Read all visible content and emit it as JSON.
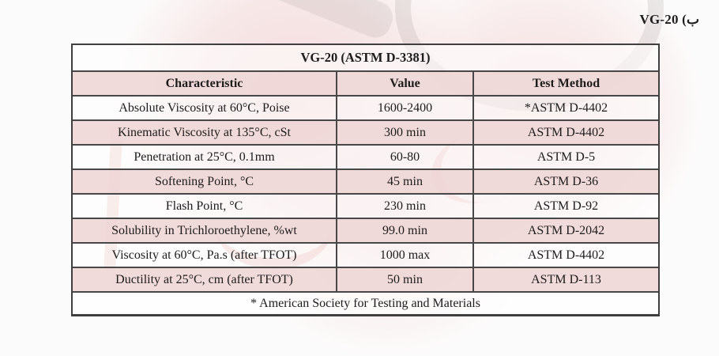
{
  "page": {
    "heading": "VG-20 (ب"
  },
  "table": {
    "title": "VG-20 (ASTM D-3381)",
    "columns": [
      "Characteristic",
      "Value",
      "Test Method"
    ],
    "rows": [
      {
        "characteristic": "Absolute Viscosity at 60°C, Poise",
        "value": "1600-2400",
        "test_method": "*ASTM D-4402"
      },
      {
        "characteristic": "Kinematic Viscosity at 135°C, cSt",
        "value": "300 min",
        "test_method": "ASTM D-4402"
      },
      {
        "characteristic": "Penetration at 25°C, 0.1mm",
        "value": "60-80",
        "test_method": "ASTM D-5"
      },
      {
        "characteristic": "Softening Point, °C",
        "value": "45 min",
        "test_method": "ASTM D-36"
      },
      {
        "characteristic": "Flash Point, °C",
        "value": "230 min",
        "test_method": "ASTM D-92"
      },
      {
        "characteristic": "Solubility in Trichloroethylene, %wt",
        "value": "99.0 min",
        "test_method": "ASTM D-2042"
      },
      {
        "characteristic": "Viscosity at 60°C, Pa.s (after TFOT)",
        "value": "1000 max",
        "test_method": "ASTM D-4402"
      },
      {
        "characteristic": "Ductility at 25°C, cm (after TFOT)",
        "value": "50 min",
        "test_method": "ASTM D-113"
      }
    ],
    "footnote": "* American Society for Testing and Materials"
  },
  "colors": {
    "row_pink": "#efd7d7",
    "border": "#474747",
    "text": "#1c1c1c",
    "watermark_pink": "#f3d8d8",
    "watermark_red": "#cd5f55",
    "watermark_gray": "#7d7373",
    "page_background": "#fcfbfb"
  }
}
